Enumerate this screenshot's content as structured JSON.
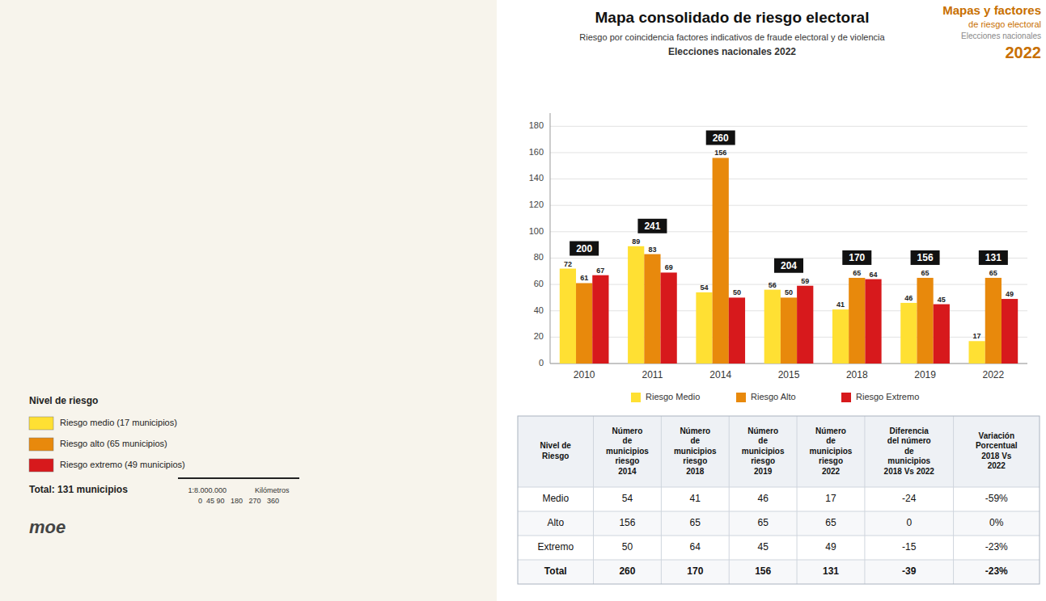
{
  "chart_data": [
    {
      "type": "bar",
      "title": "Mapa consolidado de riesgo electoral",
      "subtitle": [
        "Riesgo por coincidencia factores indicativos de fraude electoral y de violencia",
        "Elecciones nacionales 2022"
      ],
      "annotations": [
        "Mapas y factores",
        "de riesgo electoral",
        "Elecciones nacionales",
        "2022"
      ],
      "categories": [
        "2010",
        "2011",
        "2014",
        "2015",
        "2018",
        "2019",
        "2022"
      ],
      "series": [
        {
          "name": "Riesgo Medio",
          "color": "#FFE033",
          "values": [
            72,
            89,
            54,
            56,
            41,
            46,
            17
          ]
        },
        {
          "name": "Riesgo Alto",
          "color": "#E8890C",
          "values": [
            61,
            83,
            156,
            50,
            65,
            65,
            65
          ]
        },
        {
          "name": "Riesgo Extremo",
          "color": "#D7191C",
          "values": [
            67,
            69,
            50,
            59,
            64,
            45,
            49
          ]
        }
      ],
      "totals": [
        200,
        241,
        260,
        204,
        170,
        156,
        131
      ],
      "ylim": [
        0,
        190
      ],
      "yticks": [
        0,
        20,
        40,
        60,
        80,
        100,
        120,
        140,
        160,
        180
      ],
      "grid": true,
      "data_labels": true,
      "legend": "bottom"
    },
    {
      "type": "table",
      "columns": [
        "Nivel de\nRiesgo",
        "Número\nde\nmunicipios\nriesgo\n2014",
        "Número\nde\nmunicipios\nriesgo\n2018",
        "Número\nde\nmunicipios\nriesgo\n2019",
        "Número\nde\nmunicipios\nriesgo\n2022",
        "Diferencia\ndel número\nde\nmunicipios\n2018 Vs 2022",
        "Variación\nPorcentual\n2018 Vs\n2022"
      ],
      "rows": [
        [
          "Medio",
          "54",
          "41",
          "46",
          "17",
          "-24",
          "-59%"
        ],
        [
          "Alto",
          "156",
          "65",
          "65",
          "65",
          "0",
          "0%"
        ],
        [
          "Extremo",
          "50",
          "64",
          "45",
          "49",
          "-15",
          "-23%"
        ],
        [
          "Total",
          "260",
          "170",
          "156",
          "131",
          "-39",
          "-23%"
        ]
      ]
    },
    {
      "type": "map",
      "title": "Nivel de riesgo",
      "categories": [
        "Riesgo medio (17 municipios)",
        "Riesgo alto (65 municipios)",
        "Riesgo extremo (49 municipios)"
      ],
      "colors": [
        "#FFE033",
        "#E8890C",
        "#D7191C"
      ],
      "annotations": [
        "Total: 131 municipios",
        "moe",
        "1:8.000.000              Kilómetros",
        "0  45 90   180   270   360"
      ]
    }
  ]
}
